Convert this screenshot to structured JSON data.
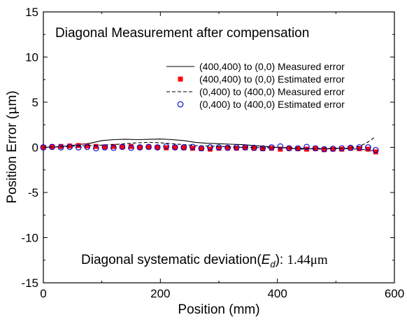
{
  "chart_data": {
    "type": "line",
    "title": "Diagonal Measurement after compensation",
    "xlabel": "Position (mm)",
    "ylabel_prefix": "Position Error (",
    "ylabel_unit": "μ",
    "ylabel_suffix": "m)",
    "xlim": [
      0,
      600
    ],
    "ylim": [
      -15,
      15
    ],
    "xticks": [
      0,
      200,
      400,
      600
    ],
    "yticks": [
      -15,
      -10,
      -5,
      0,
      5,
      10,
      15
    ],
    "grid": false,
    "legend_placement": "top-right",
    "annotation": {
      "prefix": "Diagonal systematic deviation(",
      "symbol": "E",
      "subscript": "d",
      "suffix": "): ",
      "value": "1.44μm"
    },
    "series": [
      {
        "name": "(400,400) to (0,0) Measured error",
        "style": "solid-line",
        "color": "#000000",
        "x": [
          0,
          20,
          40,
          60,
          80,
          100,
          120,
          140,
          160,
          180,
          200,
          220,
          240,
          260,
          280,
          300,
          320,
          340,
          360,
          380,
          400,
          420,
          440,
          460,
          480,
          500,
          520,
          540,
          560,
          568
        ],
        "y": [
          0.0,
          0.05,
          0.15,
          0.3,
          0.45,
          0.75,
          0.85,
          0.9,
          0.85,
          0.88,
          0.92,
          0.85,
          0.75,
          0.55,
          0.45,
          0.4,
          0.35,
          0.3,
          0.2,
          0.1,
          0.0,
          -0.1,
          -0.2,
          -0.15,
          -0.2,
          -0.1,
          -0.15,
          -0.2,
          -0.35,
          -0.4
        ]
      },
      {
        "name": "(400,400) to (0,0) Estimated error",
        "style": "square-marker",
        "color": "#ff0000",
        "x": [
          0,
          15,
          30,
          45,
          60,
          75,
          90,
          105,
          120,
          135,
          150,
          165,
          180,
          195,
          210,
          225,
          240,
          255,
          270,
          285,
          300,
          315,
          330,
          345,
          360,
          375,
          390,
          405,
          420,
          435,
          450,
          465,
          480,
          495,
          510,
          525,
          540,
          555,
          568
        ],
        "y": [
          0.0,
          0.05,
          0.1,
          0.15,
          0.2,
          0.15,
          0.1,
          0.05,
          0.1,
          0.05,
          0.1,
          0.0,
          0.05,
          0.0,
          -0.05,
          0.0,
          -0.05,
          -0.1,
          -0.15,
          -0.2,
          -0.1,
          -0.05,
          -0.1,
          -0.05,
          -0.1,
          -0.15,
          -0.1,
          -0.2,
          -0.1,
          -0.15,
          -0.2,
          -0.15,
          -0.25,
          -0.2,
          -0.2,
          -0.1,
          -0.15,
          -0.2,
          -0.5
        ]
      },
      {
        "name": "(0,400) to (400,0) Measured error",
        "style": "dashed-line",
        "color": "#000000",
        "x": [
          0,
          20,
          40,
          60,
          80,
          100,
          120,
          140,
          160,
          180,
          200,
          220,
          240,
          260,
          280,
          300,
          320,
          340,
          360,
          380,
          400,
          420,
          440,
          460,
          480,
          500,
          520,
          540,
          555,
          568
        ],
        "y": [
          0.0,
          0.05,
          0.1,
          0.15,
          0.2,
          0.25,
          0.3,
          0.4,
          0.5,
          0.55,
          0.5,
          0.4,
          0.3,
          0.2,
          0.15,
          0.1,
          0.05,
          0.0,
          0.0,
          -0.05,
          0.0,
          -0.05,
          -0.1,
          -0.15,
          -0.1,
          -0.15,
          -0.1,
          0.1,
          0.6,
          1.2
        ]
      },
      {
        "name": "(0,400) to (400,0) Estimated error",
        "style": "circle-marker",
        "color": "#0000cc",
        "x": [
          0,
          15,
          30,
          45,
          60,
          75,
          90,
          105,
          120,
          135,
          150,
          165,
          180,
          195,
          210,
          225,
          240,
          255,
          270,
          285,
          300,
          315,
          330,
          345,
          360,
          375,
          390,
          405,
          420,
          435,
          450,
          465,
          480,
          495,
          510,
          525,
          540,
          555,
          568
        ],
        "y": [
          0.0,
          0.05,
          0.0,
          0.05,
          0.0,
          0.05,
          -0.1,
          0.0,
          -0.05,
          0.05,
          -0.05,
          0.0,
          0.05,
          0.0,
          0.1,
          0.0,
          0.0,
          0.05,
          -0.1,
          0.0,
          0.0,
          -0.05,
          0.0,
          0.0,
          -0.05,
          -0.1,
          0.0,
          0.1,
          -0.1,
          -0.1,
          0.05,
          -0.1,
          -0.2,
          -0.15,
          -0.1,
          -0.05,
          0.0,
          0.0,
          -0.3
        ]
      }
    ]
  }
}
